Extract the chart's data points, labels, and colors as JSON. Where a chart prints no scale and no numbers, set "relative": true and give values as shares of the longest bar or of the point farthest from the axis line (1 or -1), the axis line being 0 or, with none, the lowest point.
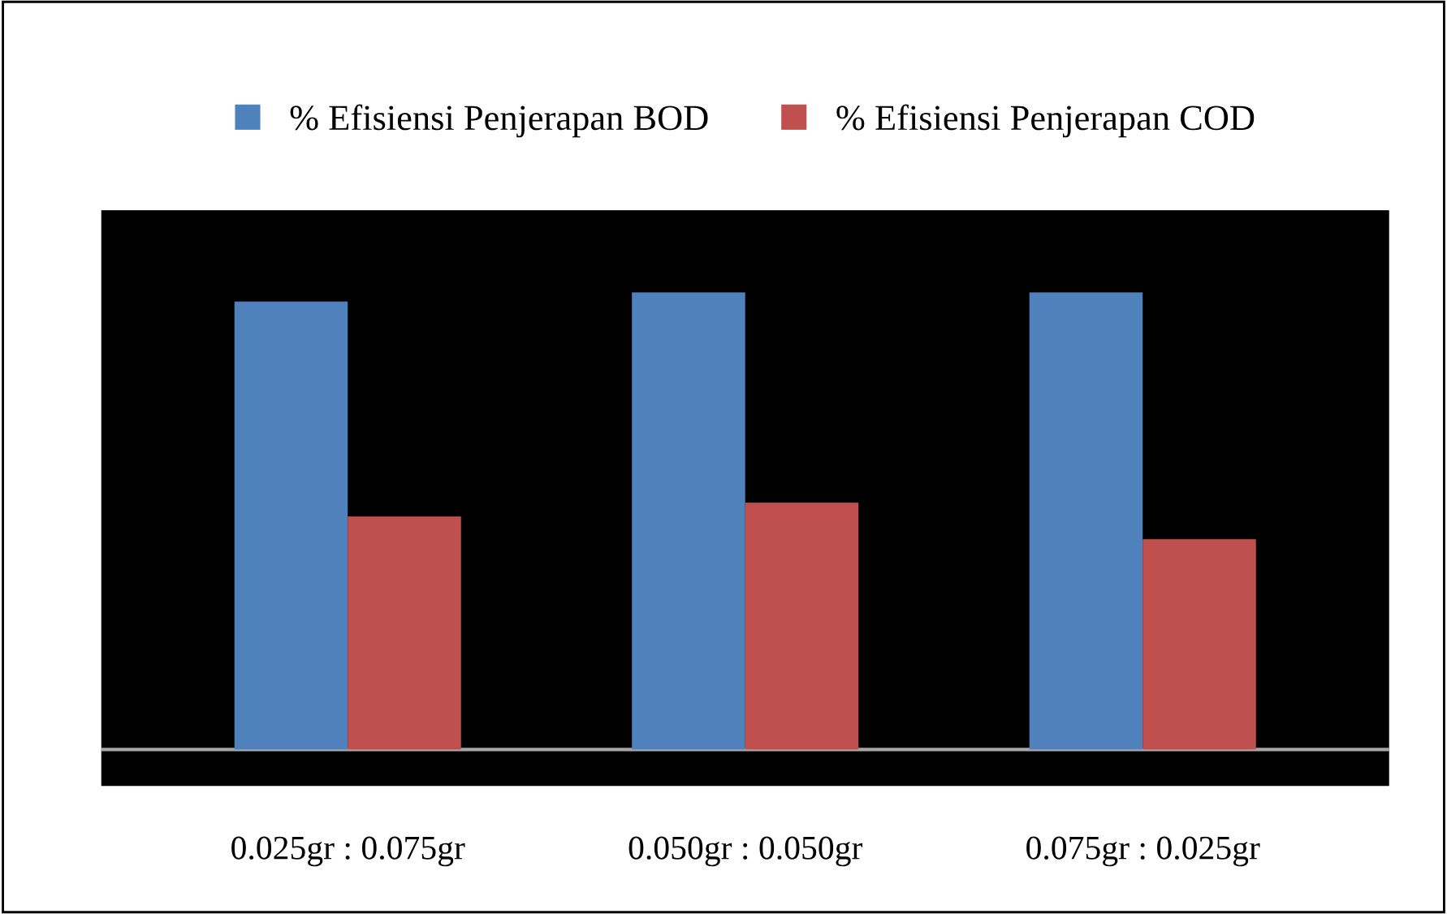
{
  "chart_data": {
    "type": "bar",
    "relative": true,
    "categories": [
      "0.025gr : 0.075gr",
      "0.050gr : 0.050gr",
      "0.075gr : 0.025gr"
    ],
    "series": [
      {
        "name": "% Efisiensi Penjerapan BOD",
        "color": "#4f81bd",
        "values": [
          0.98,
          1,
          1
        ]
      },
      {
        "name": "% Efisiensi Penjerapan COD",
        "color": "#c0504d",
        "values": [
          0.51,
          0.54,
          0.46
        ]
      }
    ],
    "legend": "top",
    "grid": false
  }
}
